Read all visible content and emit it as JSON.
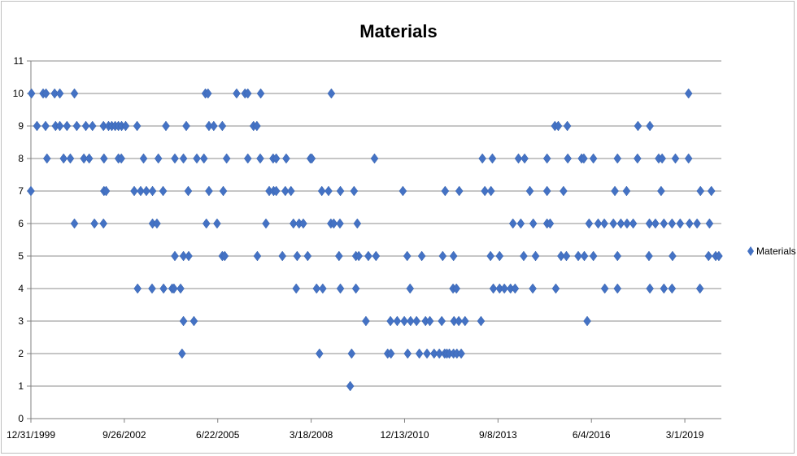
{
  "chart_data": {
    "type": "scatter",
    "title": "Materials",
    "xlabel": "",
    "ylabel": "",
    "ylim": [
      0,
      11
    ],
    "xlim": [
      "1999-12-31",
      "2020-03-26"
    ],
    "grid": true,
    "legend_position": "right",
    "marker_color": "#4472C4",
    "x_tick_labels": [
      "12/31/1999",
      "9/26/2002",
      "6/22/2005",
      "3/18/2008",
      "12/13/2010",
      "9/8/2013",
      "6/4/2016",
      "3/1/2019"
    ],
    "y_tick_labels": [
      "0",
      "1",
      "2",
      "3",
      "4",
      "5",
      "6",
      "7",
      "8",
      "9",
      "10",
      "11"
    ],
    "series": [
      {
        "name": "Materials",
        "points": [
          [
            "2000-01-06",
            10
          ],
          [
            "2000-05-10",
            10
          ],
          [
            "2000-06-10",
            10
          ],
          [
            "2000-09-10",
            10
          ],
          [
            "2000-11-05",
            10
          ],
          [
            "2001-04-10",
            10
          ],
          [
            "2005-02-10",
            10
          ],
          [
            "2005-03-10",
            10
          ],
          [
            "2006-01-10",
            10
          ],
          [
            "2006-04-10",
            10
          ],
          [
            "2006-05-10",
            10
          ],
          [
            "2006-09-25",
            10
          ],
          [
            "2008-10-20",
            10
          ],
          [
            "2019-04-10",
            10
          ],
          [
            "2000-03-05",
            9
          ],
          [
            "2000-06-05",
            9
          ],
          [
            "2000-09-20",
            9
          ],
          [
            "2000-11-05",
            9
          ],
          [
            "2001-01-20",
            9
          ],
          [
            "2001-05-05",
            9
          ],
          [
            "2001-08-10",
            9
          ],
          [
            "2001-10-20",
            9
          ],
          [
            "2002-02-15",
            9
          ],
          [
            "2002-04-10",
            9
          ],
          [
            "2002-05-15",
            9
          ],
          [
            "2002-06-20",
            9
          ],
          [
            "2002-07-25",
            9
          ],
          [
            "2002-08-28",
            9
          ],
          [
            "2002-10-10",
            9
          ],
          [
            "2003-02-10",
            9
          ],
          [
            "2003-12-15",
            9
          ],
          [
            "2004-07-20",
            9
          ],
          [
            "2005-03-20",
            9
          ],
          [
            "2005-05-10",
            9
          ],
          [
            "2005-08-10",
            9
          ],
          [
            "2006-07-10",
            9
          ],
          [
            "2006-08-15",
            9
          ],
          [
            "2015-05-10",
            9
          ],
          [
            "2015-06-15",
            9
          ],
          [
            "2015-09-20",
            9
          ],
          [
            "2017-10-15",
            9
          ],
          [
            "2018-02-20",
            9
          ],
          [
            "2000-06-20",
            8
          ],
          [
            "2000-12-15",
            8
          ],
          [
            "2001-02-25",
            8
          ],
          [
            "2001-07-20",
            8
          ],
          [
            "2001-09-15",
            8
          ],
          [
            "2002-02-20",
            8
          ],
          [
            "2002-07-25",
            8
          ],
          [
            "2002-08-25",
            8
          ],
          [
            "2003-04-20",
            8
          ],
          [
            "2003-09-25",
            8
          ],
          [
            "2004-03-20",
            8
          ],
          [
            "2004-06-20",
            8
          ],
          [
            "2004-11-10",
            8
          ],
          [
            "2005-01-25",
            8
          ],
          [
            "2005-09-25",
            8
          ],
          [
            "2006-05-10",
            8
          ],
          [
            "2006-09-20",
            8
          ],
          [
            "2007-02-05",
            8
          ],
          [
            "2007-03-10",
            8
          ],
          [
            "2007-06-25",
            8
          ],
          [
            "2008-03-10",
            8
          ],
          [
            "2008-03-25",
            8
          ],
          [
            "2010-01-25",
            8
          ],
          [
            "2013-03-25",
            8
          ],
          [
            "2013-07-10",
            8
          ],
          [
            "2014-04-15",
            8
          ],
          [
            "2014-06-20",
            8
          ],
          [
            "2015-02-15",
            8
          ],
          [
            "2015-09-25",
            8
          ],
          [
            "2016-02-20",
            8
          ],
          [
            "2016-03-15",
            8
          ],
          [
            "2016-06-25",
            8
          ],
          [
            "2017-03-10",
            8
          ],
          [
            "2017-10-10",
            8
          ],
          [
            "2018-05-25",
            8
          ],
          [
            "2018-07-01",
            8
          ],
          [
            "2018-11-20",
            8
          ],
          [
            "2019-04-10",
            8
          ],
          [
            "1999-12-31",
            7
          ],
          [
            "2002-02-20",
            7
          ],
          [
            "2002-03-15",
            7
          ],
          [
            "2003-01-10",
            7
          ],
          [
            "2003-03-20",
            7
          ],
          [
            "2003-05-20",
            7
          ],
          [
            "2003-07-25",
            7
          ],
          [
            "2003-11-15",
            7
          ],
          [
            "2004-08-10",
            7
          ],
          [
            "2005-03-20",
            7
          ],
          [
            "2005-08-20",
            7
          ],
          [
            "2006-12-25",
            7
          ],
          [
            "2007-02-10",
            7
          ],
          [
            "2007-03-10",
            7
          ],
          [
            "2007-06-15",
            7
          ],
          [
            "2007-08-15",
            7
          ],
          [
            "2008-07-10",
            7
          ],
          [
            "2008-09-20",
            7
          ],
          [
            "2009-01-25",
            7
          ],
          [
            "2009-06-20",
            7
          ],
          [
            "2010-11-25",
            7
          ],
          [
            "2012-02-20",
            7
          ],
          [
            "2012-07-20",
            7
          ],
          [
            "2013-04-20",
            7
          ],
          [
            "2013-06-25",
            7
          ],
          [
            "2014-08-15",
            7
          ],
          [
            "2015-02-15",
            7
          ],
          [
            "2015-08-10",
            7
          ],
          [
            "2017-02-10",
            7
          ],
          [
            "2017-06-15",
            7
          ],
          [
            "2018-06-20",
            7
          ],
          [
            "2019-08-15",
            7
          ],
          [
            "2019-12-10",
            7
          ],
          [
            "2001-04-10",
            6
          ],
          [
            "2001-11-10",
            6
          ],
          [
            "2002-02-15",
            6
          ],
          [
            "2003-07-25",
            6
          ],
          [
            "2003-09-10",
            6
          ],
          [
            "2005-02-20",
            6
          ],
          [
            "2005-06-15",
            6
          ],
          [
            "2006-11-20",
            6
          ],
          [
            "2007-09-10",
            6
          ],
          [
            "2007-11-10",
            6
          ],
          [
            "2007-12-25",
            6
          ],
          [
            "2008-10-15",
            6
          ],
          [
            "2008-11-15",
            6
          ],
          [
            "2009-01-20",
            6
          ],
          [
            "2009-07-25",
            6
          ],
          [
            "2014-02-15",
            6
          ],
          [
            "2014-05-10",
            6
          ],
          [
            "2014-09-20",
            6
          ],
          [
            "2015-02-15",
            6
          ],
          [
            "2015-03-20",
            6
          ],
          [
            "2016-05-10",
            6
          ],
          [
            "2016-08-15",
            6
          ],
          [
            "2016-10-20",
            6
          ],
          [
            "2017-01-25",
            6
          ],
          [
            "2017-04-15",
            6
          ],
          [
            "2017-06-20",
            6
          ],
          [
            "2017-08-25",
            6
          ],
          [
            "2018-02-15",
            6
          ],
          [
            "2018-04-20",
            6
          ],
          [
            "2018-07-20",
            6
          ],
          [
            "2018-10-15",
            6
          ],
          [
            "2019-01-10",
            6
          ],
          [
            "2019-04-20",
            6
          ],
          [
            "2019-07-10",
            6
          ],
          [
            "2019-11-20",
            6
          ],
          [
            "2004-03-20",
            5
          ],
          [
            "2004-06-20",
            5
          ],
          [
            "2004-08-15",
            5
          ],
          [
            "2005-08-10",
            5
          ],
          [
            "2005-09-05",
            5
          ],
          [
            "2006-08-20",
            5
          ],
          [
            "2007-05-15",
            5
          ],
          [
            "2007-10-20",
            5
          ],
          [
            "2008-02-10",
            5
          ],
          [
            "2009-01-10",
            5
          ],
          [
            "2009-07-10",
            5
          ],
          [
            "2009-08-10",
            5
          ],
          [
            "2009-11-20",
            5
          ],
          [
            "2010-02-10",
            5
          ],
          [
            "2011-01-10",
            5
          ],
          [
            "2011-06-15",
            5
          ],
          [
            "2012-01-25",
            5
          ],
          [
            "2012-05-20",
            5
          ],
          [
            "2013-06-20",
            5
          ],
          [
            "2013-09-25",
            5
          ],
          [
            "2014-06-10",
            5
          ],
          [
            "2014-10-15",
            5
          ],
          [
            "2015-07-15",
            5
          ],
          [
            "2015-09-10",
            5
          ],
          [
            "2016-01-15",
            5
          ],
          [
            "2016-03-20",
            5
          ],
          [
            "2016-06-25",
            5
          ],
          [
            "2017-03-10",
            5
          ],
          [
            "2018-02-10",
            5
          ],
          [
            "2018-10-20",
            5
          ],
          [
            "2019-11-10",
            5
          ],
          [
            "2020-01-25",
            5
          ],
          [
            "2020-02-28",
            5
          ],
          [
            "2003-02-15",
            4
          ],
          [
            "2003-07-20",
            4
          ],
          [
            "2003-11-20",
            4
          ],
          [
            "2004-02-20",
            4
          ],
          [
            "2004-03-10",
            4
          ],
          [
            "2004-05-20",
            4
          ],
          [
            "2007-10-10",
            4
          ],
          [
            "2008-05-15",
            4
          ],
          [
            "2008-07-20",
            4
          ],
          [
            "2009-01-25",
            4
          ],
          [
            "2009-07-10",
            4
          ],
          [
            "2011-02-10",
            4
          ],
          [
            "2012-05-15",
            4
          ],
          [
            "2012-06-20",
            4
          ],
          [
            "2013-07-20",
            4
          ],
          [
            "2013-09-25",
            4
          ],
          [
            "2013-11-15",
            4
          ],
          [
            "2014-01-20",
            4
          ],
          [
            "2014-03-10",
            4
          ],
          [
            "2014-09-15",
            4
          ],
          [
            "2015-05-20",
            4
          ],
          [
            "2016-10-25",
            4
          ],
          [
            "2017-03-10",
            4
          ],
          [
            "2018-02-20",
            4
          ],
          [
            "2018-07-20",
            4
          ],
          [
            "2018-10-15",
            4
          ],
          [
            "2019-08-10",
            4
          ],
          [
            "2004-06-20",
            3
          ],
          [
            "2004-10-10",
            3
          ],
          [
            "2009-10-25",
            3
          ],
          [
            "2010-07-15",
            3
          ],
          [
            "2010-09-25",
            3
          ],
          [
            "2010-12-10",
            3
          ],
          [
            "2011-02-15",
            3
          ],
          [
            "2011-04-20",
            3
          ],
          [
            "2011-07-25",
            3
          ],
          [
            "2011-09-10",
            3
          ],
          [
            "2012-01-15",
            3
          ],
          [
            "2012-05-25",
            3
          ],
          [
            "2012-07-15",
            3
          ],
          [
            "2012-09-20",
            3
          ],
          [
            "2013-03-10",
            3
          ],
          [
            "2016-04-20",
            3
          ],
          [
            "2004-06-05",
            2
          ],
          [
            "2008-06-15",
            2
          ],
          [
            "2009-05-25",
            2
          ],
          [
            "2010-06-15",
            2
          ],
          [
            "2010-07-20",
            2
          ],
          [
            "2011-01-15",
            2
          ],
          [
            "2011-05-20",
            2
          ],
          [
            "2011-08-10",
            2
          ],
          [
            "2011-10-25",
            2
          ],
          [
            "2011-12-20",
            2
          ],
          [
            "2012-02-15",
            2
          ],
          [
            "2012-03-10",
            2
          ],
          [
            "2012-04-05",
            2
          ],
          [
            "2012-05-20",
            2
          ],
          [
            "2012-06-25",
            2
          ],
          [
            "2012-08-10",
            2
          ],
          [
            "2009-05-10",
            1
          ]
        ]
      }
    ]
  }
}
